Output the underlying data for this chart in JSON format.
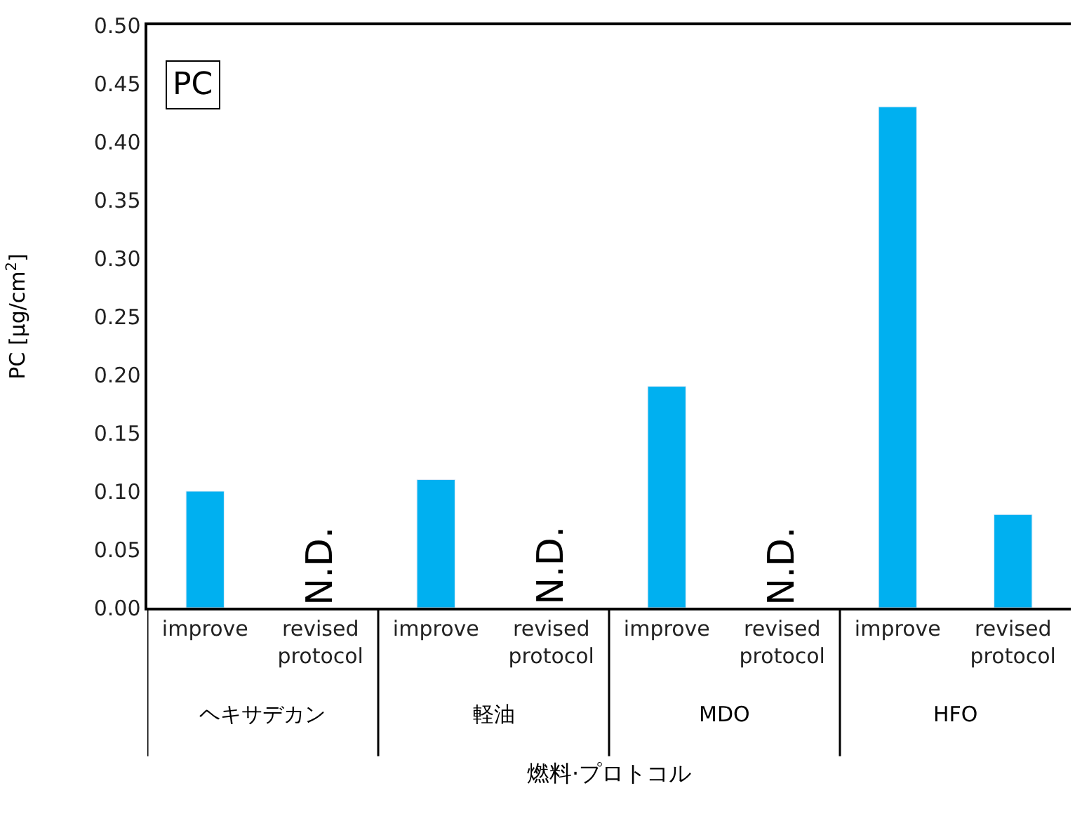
{
  "chart_data": {
    "type": "bar",
    "title": "PC",
    "ylabel": "PC [μg/cm$^{2}$]",
    "xlabel": "燃料·プロトコル",
    "categories": [
      "improve",
      "revised protocol",
      "improve",
      "revised protocol",
      "improve",
      "revised protocol",
      "improve",
      "revised protocol"
    ],
    "values": [
      0.1,
      null,
      0.11,
      null,
      0.19,
      null,
      0.43,
      0.08
    ],
    "value_labels": [
      null,
      "N.D.",
      null,
      "N.D.",
      null,
      "N.D.",
      null,
      null
    ],
    "color": "#00b0f0",
    "ylim": [
      0,
      0.5
    ],
    "yticks": [
      {
        "value": 0,
        "label": "0.00"
      },
      {
        "value": 0.05,
        "label": "0.05"
      },
      {
        "value": 0.1,
        "label": "0.10"
      },
      {
        "value": 0.15,
        "label": "0.15"
      },
      {
        "value": 0.2,
        "label": "0.20"
      },
      {
        "value": 0.25,
        "label": "0.25"
      },
      {
        "value": 0.3,
        "label": "0.30"
      },
      {
        "value": 0.35,
        "label": "0.35"
      },
      {
        "value": 0.4,
        "label": "0.40"
      },
      {
        "value": 0.45,
        "label": "0.45"
      },
      {
        "value": 0.5,
        "label": "0.50"
      }
    ],
    "annotations": [
      "ヘキサデカン",
      "軽油",
      "MDO",
      "HFO"
    ],
    "legend": false
  }
}
